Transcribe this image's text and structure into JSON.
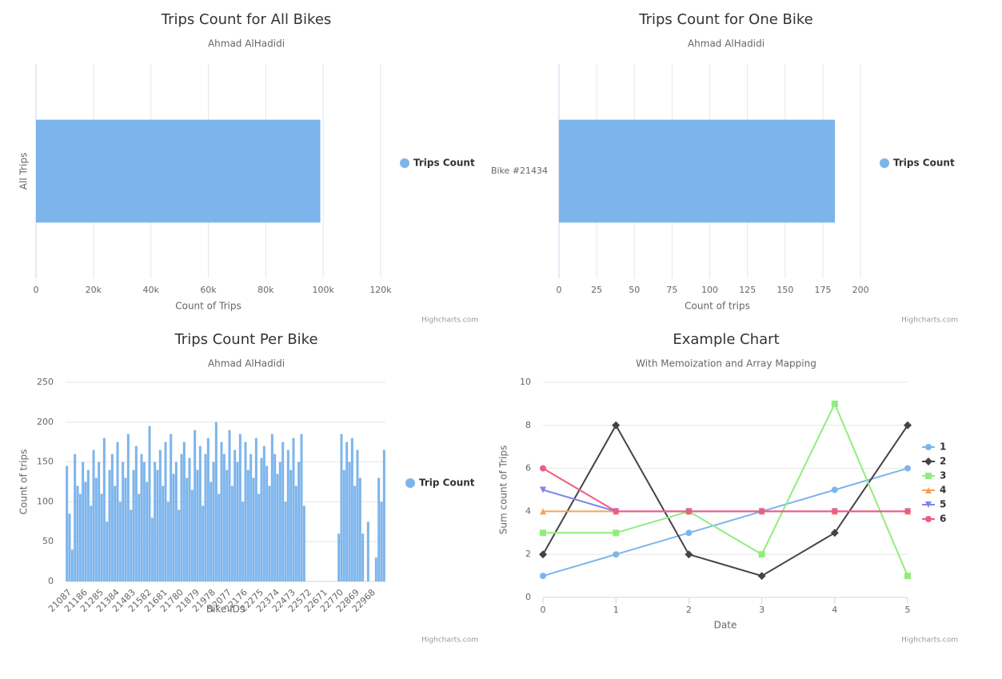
{
  "chart_data": [
    {
      "type": "bar",
      "title": "Trips Count for All Bikes",
      "subtitle": "Ahmad AlHadidi",
      "credits": "Highcharts.com",
      "ylabel": "All Trips",
      "xlabel": "Count of Trips",
      "categories": [
        null
      ],
      "series": [
        {
          "name": "Trips Count",
          "color": "#7cb5ec",
          "values": [
            99000
          ]
        }
      ],
      "xlim": [
        0,
        120000
      ],
      "xticks": [
        0,
        {
          "value": 20000,
          "label": "20k"
        },
        {
          "value": 40000,
          "label": "40k"
        },
        {
          "value": 60000,
          "label": "60k"
        },
        {
          "value": 80000,
          "label": "80k"
        },
        {
          "value": 100000,
          "label": "100k"
        },
        {
          "value": 120000,
          "label": "120k"
        }
      ],
      "grid": true,
      "legend": "right"
    },
    {
      "type": "bar",
      "title": "Trips Count for One Bike",
      "subtitle": "Ahmad AlHadidi",
      "credits": "Highcharts.com",
      "xlabel": "Count of trips",
      "categories": [
        "Bike #21434"
      ],
      "series": [
        {
          "name": "Trips Count",
          "color": "#7cb5ec",
          "values": [
            183
          ]
        }
      ],
      "xlim": [
        0,
        210
      ],
      "xticks": [
        0,
        25,
        50,
        75,
        100,
        125,
        150,
        175,
        200
      ],
      "grid": true,
      "legend": "right"
    },
    {
      "type": "column",
      "title": "Trips Count Per Bike",
      "subtitle": "Ahmad AlHadidi",
      "credits": "Highcharts.com",
      "ylabel": "Count of trips",
      "xlabel": "Bike IDs",
      "categories": [
        "21087",
        null,
        null,
        null,
        null,
        null,
        "21186",
        null,
        null,
        null,
        null,
        null,
        "21285",
        null,
        null,
        null,
        null,
        null,
        "21384",
        null,
        null,
        null,
        null,
        null,
        "21483",
        null,
        null,
        null,
        null,
        null,
        "21582",
        null,
        null,
        null,
        null,
        null,
        "21681",
        null,
        null,
        null,
        null,
        null,
        "21780",
        null,
        null,
        null,
        null,
        null,
        "21879",
        null,
        null,
        null,
        null,
        null,
        "21978",
        null,
        null,
        null,
        null,
        null,
        "22077",
        null,
        null,
        null,
        null,
        null,
        "22176",
        null,
        null,
        null,
        null,
        null,
        "22275",
        null,
        null,
        null,
        null,
        null,
        "22374",
        null,
        null,
        null,
        null,
        null,
        "22473",
        null,
        null,
        null,
        null,
        null,
        "22572",
        null,
        null,
        null,
        null,
        null,
        "22671",
        null,
        null,
        null,
        null,
        null,
        "22770",
        null,
        null,
        null,
        null,
        null,
        "22869",
        null,
        null,
        null,
        null,
        null,
        "22968",
        null,
        null,
        null,
        null,
        null
      ],
      "series": [
        {
          "name": "Trip Count",
          "color": "#7cb5ec",
          "values": [
            145,
            85,
            40,
            160,
            120,
            110,
            150,
            125,
            140,
            95,
            165,
            130,
            150,
            110,
            180,
            75,
            140,
            160,
            120,
            175,
            100,
            150,
            130,
            185,
            90,
            140,
            170,
            110,
            160,
            150,
            125,
            195,
            80,
            150,
            140,
            165,
            120,
            175,
            100,
            185,
            135,
            150,
            90,
            160,
            175,
            130,
            155,
            115,
            190,
            140,
            170,
            95,
            160,
            180,
            125,
            150,
            200,
            110,
            175,
            160,
            140,
            190,
            120,
            165,
            150,
            185,
            100,
            175,
            140,
            160,
            130,
            180,
            110,
            155,
            170,
            145,
            120,
            185,
            160,
            135,
            150,
            175,
            100,
            165,
            140,
            180,
            120,
            150,
            185,
            95,
            0,
            0,
            0,
            0,
            0,
            0,
            0,
            0,
            0,
            0,
            0,
            0,
            60,
            185,
            140,
            175,
            150,
            180,
            120,
            165,
            130,
            60,
            0,
            75,
            0,
            0,
            30,
            130,
            100,
            165
          ]
        }
      ],
      "ylim": [
        0,
        250
      ],
      "yticks": [
        0,
        50,
        100,
        150,
        200,
        250
      ],
      "grid": true,
      "legend": "right"
    },
    {
      "type": "line",
      "title": "Example Chart",
      "subtitle": "With Memoization and Array Mapping",
      "credits": "Highcharts.com",
      "ylabel": "Sum count of Trips",
      "xlabel": "Date",
      "x": [
        0,
        1,
        2,
        3,
        4,
        5
      ],
      "series": [
        {
          "name": "1",
          "color": "#7cb5ec",
          "marker": "circle",
          "values": [
            1,
            2,
            3,
            4,
            5,
            6
          ]
        },
        {
          "name": "2",
          "color": "#434348",
          "marker": "diamond",
          "values": [
            2,
            8,
            2,
            1,
            3,
            8
          ]
        },
        {
          "name": "3",
          "color": "#90ed7d",
          "marker": "square",
          "values": [
            3,
            3,
            4,
            2,
            9,
            1
          ]
        },
        {
          "name": "4",
          "color": "#f7a35c",
          "marker": "triangle",
          "values": [
            4,
            4,
            4,
            4,
            4,
            4
          ]
        },
        {
          "name": "5",
          "color": "#8085e9",
          "marker": "triangle-down",
          "values": [
            5,
            4,
            4,
            4,
            4,
            4
          ]
        },
        {
          "name": "6",
          "color": "#f15c80",
          "marker": "circle",
          "values": [
            6,
            4,
            4,
            4,
            4,
            4
          ]
        }
      ],
      "xlim": [
        0,
        5
      ],
      "xticks": [
        0,
        1,
        2,
        3,
        4,
        5
      ],
      "ylim": [
        0,
        10
      ],
      "yticks": [
        0,
        2,
        4,
        6,
        8,
        10
      ],
      "grid": true,
      "legend": "right"
    }
  ]
}
